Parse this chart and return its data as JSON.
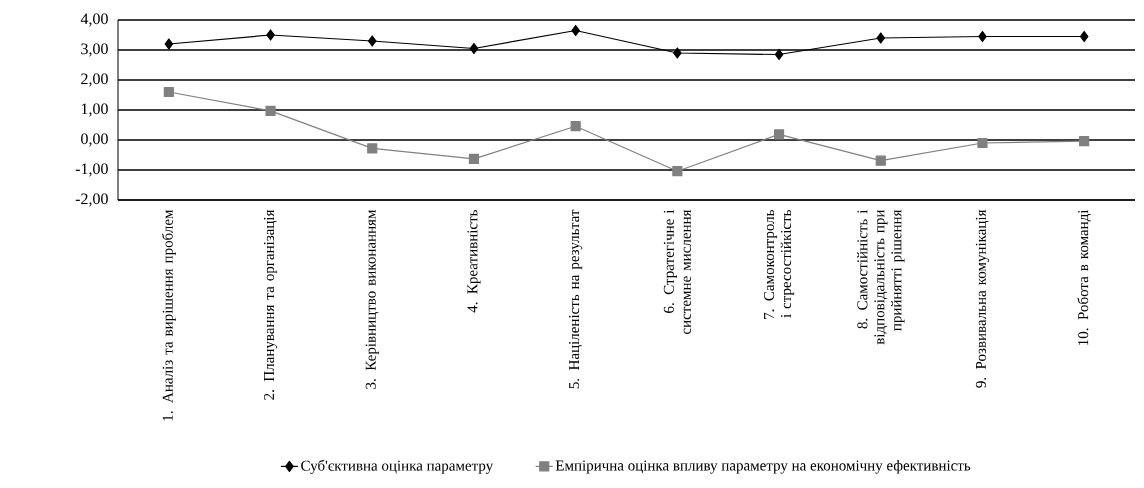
{
  "chart_data": {
    "type": "line",
    "categories": [
      "1. Аналіз та вирішення проблем",
      "2. Планування та організація",
      "3. Керівництво виконанням",
      "4. Креативність",
      "5. Націленість на результат",
      "6. Стратегічне і системне мислення",
      "7. Самоконтроль і стресостійкість",
      "8. Самостійність і відповідальність при прийнятті рішення",
      "9. Розвивальна комунікація",
      "10. Робота в команді"
    ],
    "series": [
      {
        "name": "Суб'єктивна оцінка параметру",
        "color": "#000000",
        "marker": "diamond",
        "values": [
          3.2,
          3.5,
          3.3,
          3.05,
          3.65,
          2.9,
          2.85,
          3.4,
          3.45,
          3.45
        ]
      },
      {
        "name": "Емпірична оцінка впливу параметру на економічну ефективність",
        "color": "#808080",
        "marker": "square",
        "values": [
          1.6,
          0.97,
          -0.28,
          -0.63,
          0.46,
          -1.04,
          0.19,
          -0.69,
          -0.1,
          -0.04
        ]
      }
    ],
    "ylim": [
      -2,
      4
    ],
    "yticks": [
      {
        "value": -2,
        "label": "-2,00"
      },
      {
        "value": -1,
        "label": "-1,00"
      },
      {
        "value": 0,
        "label": "0,00"
      },
      {
        "value": 1,
        "label": "1,00"
      },
      {
        "value": 2,
        "label": "2,00"
      },
      {
        "value": 3,
        "label": "3,00"
      },
      {
        "value": 4,
        "label": "4,00"
      }
    ],
    "grid": "y",
    "legend": "bottom",
    "line_style": "solid"
  }
}
